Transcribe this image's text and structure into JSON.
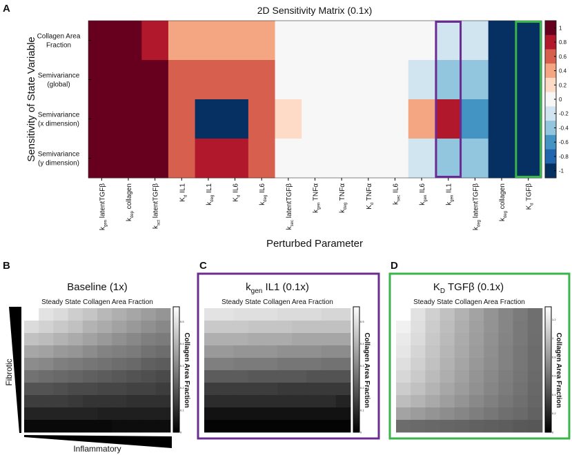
{
  "chart_data": [
    {
      "panel": "A",
      "type": "heatmap",
      "title": "2D Sensitivity Matrix (0.1x)",
      "xlabel": "Perturbed Parameter",
      "ylabel": "Sensitivity of State Variable",
      "rows": [
        {
          "lines": [
            "Collagen Area",
            "Fraction"
          ]
        },
        {
          "lines": [
            "Semivariance",
            "(global)"
          ]
        },
        {
          "lines": [
            "Semivariance",
            "(x dimension)"
          ]
        },
        {
          "lines": [
            "Semivariance",
            "(y dimension)"
          ]
        }
      ],
      "columns": [
        {
          "base": "k",
          "sub": "gen",
          "name": " latentTGFβ"
        },
        {
          "base": "k",
          "sub": "dep",
          "name": " collagen"
        },
        {
          "base": "k",
          "sub": "act",
          "name": " latentTGFβ"
        },
        {
          "base": "K",
          "sub": "d",
          "name": " IL1"
        },
        {
          "base": "k",
          "sub": "deg",
          "name": " IL1"
        },
        {
          "base": "K",
          "sub": "d",
          "name": " IL6"
        },
        {
          "base": "k",
          "sub": "deg",
          "name": " IL6"
        },
        {
          "base": "k",
          "sub": "sec",
          "name": " latentTGFβ"
        },
        {
          "base": "k",
          "sub": "gen",
          "name": " TNFα"
        },
        {
          "base": "k",
          "sub": "deg",
          "name": " TNFα"
        },
        {
          "base": "K",
          "sub": "d",
          "name": " TNFα"
        },
        {
          "base": "k",
          "sub": "sec",
          "name": " IL6"
        },
        {
          "base": "k",
          "sub": "gen",
          "name": " IL6"
        },
        {
          "base": "k",
          "sub": "gen",
          "name": " IL1"
        },
        {
          "base": "k",
          "sub": "deg",
          "name": " latentTGFβ"
        },
        {
          "base": "k",
          "sub": "deg",
          "name": " collagen"
        },
        {
          "base": "K",
          "sub": "d",
          "name": " TGFβ"
        }
      ],
      "values": [
        [
          1,
          1,
          0.8,
          0.4,
          0.4,
          0.4,
          0.4,
          0,
          0,
          0,
          0,
          0,
          0,
          -0.2,
          -0.2,
          -1,
          -1
        ],
        [
          1,
          1,
          1,
          0.6,
          0.6,
          0.6,
          0.6,
          0,
          0,
          0,
          0,
          0,
          -0.2,
          -0.4,
          -0.4,
          -1,
          -1
        ],
        [
          1,
          1,
          1,
          0.6,
          -1,
          -1,
          0.6,
          0.2,
          0,
          0,
          0,
          0,
          0.4,
          0.8,
          -0.6,
          -1,
          -1
        ],
        [
          1,
          1,
          1,
          0.6,
          0.8,
          0.8,
          0.6,
          0,
          0,
          0,
          0,
          0,
          -0.2,
          -0.4,
          -0.4,
          -1,
          -1
        ]
      ],
      "highlighted_columns": [
        {
          "index": 13,
          "color": "#6a2c91"
        },
        {
          "index": 16,
          "color": "#3ab54a"
        }
      ],
      "colorbar": {
        "range": [
          -1,
          1
        ],
        "ticks": [
          "1",
          "0.8",
          "0.6",
          "0.4",
          "0.2",
          "0",
          "-0.2",
          "-0.4",
          "-0.6",
          "-0.8",
          "-1"
        ],
        "colors": [
          "#67001f",
          "#b2182b",
          "#d6604d",
          "#f4a582",
          "#fddbc7",
          "#f7f7f7",
          "#d1e5f0",
          "#92c5de",
          "#4393c3",
          "#2166ac",
          "#053061"
        ]
      }
    },
    {
      "panel": "B",
      "type": "heatmap",
      "title": "Baseline (1x)",
      "subtitle": "Steady State Collagen Area Fraction",
      "colorbar_label": "Collagen Area Fraction",
      "colorbar_max": 0.56,
      "colorbar_ticks": [
        "0",
        "0.1",
        "0.2",
        "0.3",
        "0.4",
        "0.5"
      ],
      "colorbar_tick_values": [
        0,
        0.1,
        0.2,
        0.3,
        0.4,
        0.5
      ],
      "yaxis_label": "Fibrotic",
      "xaxis_label": "Inflammatory",
      "values": [
        [
          null,
          0.52,
          0.5,
          0.47,
          0.45,
          0.42,
          0.4,
          0.38,
          0.36,
          0.34
        ],
        [
          0.5,
          0.48,
          0.46,
          0.44,
          0.41,
          0.39,
          0.37,
          0.35,
          0.33,
          0.31
        ],
        [
          0.44,
          0.43,
          0.41,
          0.39,
          0.37,
          0.35,
          0.33,
          0.31,
          0.29,
          0.28
        ],
        [
          0.38,
          0.37,
          0.35,
          0.34,
          0.32,
          0.3,
          0.29,
          0.28,
          0.26,
          0.25
        ],
        [
          0.32,
          0.31,
          0.29,
          0.28,
          0.27,
          0.26,
          0.25,
          0.24,
          0.22,
          0.21
        ],
        [
          0.26,
          0.25,
          0.24,
          0.23,
          0.22,
          0.21,
          0.2,
          0.19,
          0.18,
          0.17
        ],
        [
          0.19,
          0.19,
          0.18,
          0.17,
          0.17,
          0.16,
          0.16,
          0.15,
          0.15,
          0.14
        ],
        [
          0.14,
          0.14,
          0.14,
          0.13,
          0.12,
          0.12,
          0.12,
          0.11,
          0.11,
          0.11
        ],
        [
          0.08,
          0.08,
          0.08,
          0.08,
          0.08,
          0.07,
          0.07,
          0.07,
          0.07,
          0.07
        ],
        [
          0.02,
          0.02,
          0.02,
          0.02,
          0.02,
          0.02,
          0.03,
          0.03,
          0.03,
          0.03
        ]
      ]
    },
    {
      "panel": "C",
      "type": "heatmap",
      "title_base": "k",
      "title_sub": "gen",
      "title_rest": " IL1 (0.1x)",
      "subtitle": "Steady State Collagen Area Fraction",
      "colorbar_label": "Collagen Area Fraction",
      "colorbar_max": 0.56,
      "colorbar_ticks": [
        "0",
        "0.1",
        "0.2",
        "0.3",
        "0.4",
        "0.5"
      ],
      "colorbar_tick_values": [
        0,
        0.1,
        0.2,
        0.3,
        0.4,
        0.5
      ],
      "frame_color": "#6a2c91",
      "values": [
        [
          0.52,
          0.52,
          0.51,
          0.51,
          0.51,
          0.5,
          0.5,
          0.5,
          0.49,
          0.49
        ],
        [
          0.46,
          0.46,
          0.46,
          0.45,
          0.45,
          0.45,
          0.44,
          0.44,
          0.44,
          0.44
        ],
        [
          0.4,
          0.4,
          0.4,
          0.39,
          0.39,
          0.39,
          0.38,
          0.38,
          0.38,
          0.38
        ],
        [
          0.35,
          0.35,
          0.34,
          0.34,
          0.34,
          0.33,
          0.33,
          0.33,
          0.32,
          0.32
        ],
        [
          0.29,
          0.29,
          0.28,
          0.28,
          0.28,
          0.27,
          0.27,
          0.27,
          0.26,
          0.26
        ],
        [
          0.21,
          0.21,
          0.21,
          0.2,
          0.2,
          0.2,
          0.2,
          0.19,
          0.19,
          0.19
        ],
        [
          0.14,
          0.14,
          0.14,
          0.14,
          0.14,
          0.13,
          0.13,
          0.13,
          0.13,
          0.13
        ],
        [
          0.1,
          0.1,
          0.1,
          0.1,
          0.1,
          0.1,
          0.1,
          0.1,
          0.1,
          0.08
        ],
        [
          0.04,
          0.04,
          0.04,
          0.04,
          0.04,
          0.04,
          0.04,
          0.04,
          0.04,
          0.04
        ],
        [
          0.01,
          0.01,
          0.01,
          0.01,
          0.01,
          0.01,
          0.01,
          0.01,
          0.01,
          0.01
        ]
      ]
    },
    {
      "panel": "D",
      "type": "heatmap",
      "title_base": "K",
      "title_sub": "D",
      "title_rest": " TGFβ (0.1x)",
      "subtitle": "Steady State Collagen Area Fraction",
      "colorbar_label": "Collagen Area Fraction",
      "colorbar_max": 1.32,
      "colorbar_ticks": [
        "0",
        "0.2",
        "0.4",
        "0.6",
        "0.8",
        "1",
        "1.2"
      ],
      "colorbar_tick_values": [
        0,
        0.2,
        0.4,
        0.6,
        0.8,
        1,
        1.2
      ],
      "frame_color": "#3ab54a",
      "values": [
        [
          null,
          1.22,
          1.12,
          1.04,
          0.96,
          0.88,
          0.8,
          0.72,
          0.66,
          0.6
        ],
        [
          1.3,
          1.2,
          1.1,
          1.02,
          0.94,
          0.86,
          0.79,
          0.72,
          0.65,
          0.6
        ],
        [
          1.26,
          1.18,
          1.08,
          1.0,
          0.92,
          0.85,
          0.78,
          0.71,
          0.65,
          0.59
        ],
        [
          1.24,
          1.15,
          1.06,
          0.98,
          0.91,
          0.84,
          0.77,
          0.7,
          0.64,
          0.58
        ],
        [
          1.2,
          1.12,
          1.04,
          0.96,
          0.89,
          0.82,
          0.76,
          0.7,
          0.64,
          0.58
        ],
        [
          1.16,
          1.09,
          1.01,
          0.94,
          0.87,
          0.8,
          0.74,
          0.68,
          0.63,
          0.57
        ],
        [
          1.1,
          1.04,
          0.97,
          0.9,
          0.84,
          0.78,
          0.72,
          0.67,
          0.62,
          0.56
        ],
        [
          1.02,
          0.97,
          0.91,
          0.85,
          0.8,
          0.74,
          0.69,
          0.64,
          0.6,
          0.55
        ],
        [
          0.88,
          0.84,
          0.8,
          0.76,
          0.72,
          0.68,
          0.64,
          0.6,
          0.57,
          0.53
        ],
        [
          0.58,
          0.57,
          0.56,
          0.55,
          0.54,
          0.52,
          0.51,
          0.5,
          0.48,
          0.47
        ]
      ]
    }
  ],
  "panel_letters": [
    "A",
    "B",
    "C",
    "D"
  ]
}
